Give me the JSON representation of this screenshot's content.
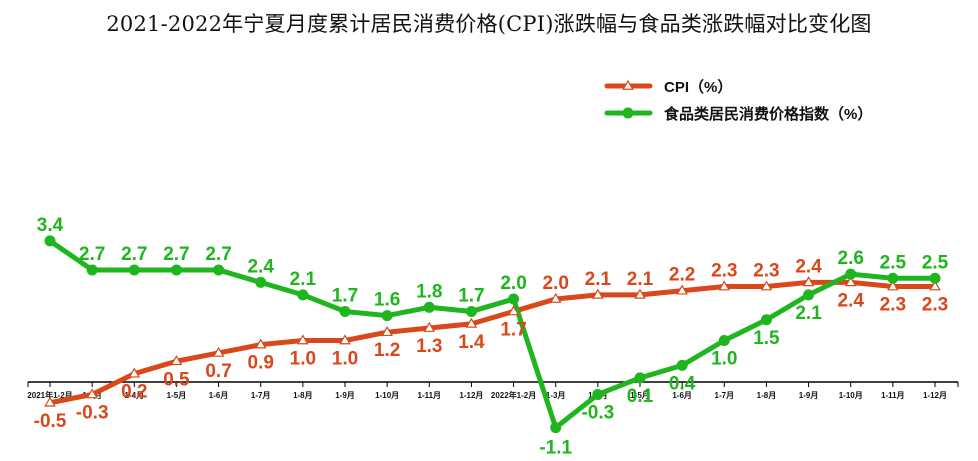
{
  "chart_data": {
    "type": "line",
    "title": "2021-2022年宁夏月度累计居民消费价格(CPI)涨跌幅与食品类涨跌幅对比变化图",
    "categories": [
      "2021年1-2月",
      "1-3月",
      "1-4月",
      "1-5月",
      "1-6月",
      "1-7月",
      "1-8月",
      "1-9月",
      "1-10月",
      "1-11月",
      "1-12月",
      "2022年1-2月",
      "1-3月",
      "1-4月",
      "1-5月",
      "1-6月",
      "1-7月",
      "1-8月",
      "1-9月",
      "1-10月",
      "1-11月",
      "1-12月"
    ],
    "series": [
      {
        "name": "CPI（%）",
        "color": "#d9471a",
        "marker": "triangle",
        "values": [
          -0.5,
          -0.3,
          0.2,
          0.5,
          0.7,
          0.9,
          1.0,
          1.0,
          1.2,
          1.3,
          1.4,
          1.7,
          2.0,
          2.1,
          2.1,
          2.2,
          2.3,
          2.3,
          2.4,
          2.4,
          2.3,
          2.3
        ]
      },
      {
        "name": "食品类居民消费价格指数（%）",
        "color": "#1fb51f",
        "marker": "circle",
        "values": [
          3.4,
          2.7,
          2.7,
          2.7,
          2.7,
          2.4,
          2.1,
          1.7,
          1.6,
          1.8,
          1.7,
          2.0,
          -1.1,
          -0.3,
          0.1,
          0.4,
          1.0,
          1.5,
          2.1,
          2.6,
          2.5,
          2.5
        ]
      }
    ],
    "legend": "top-right",
    "grid": false
  }
}
